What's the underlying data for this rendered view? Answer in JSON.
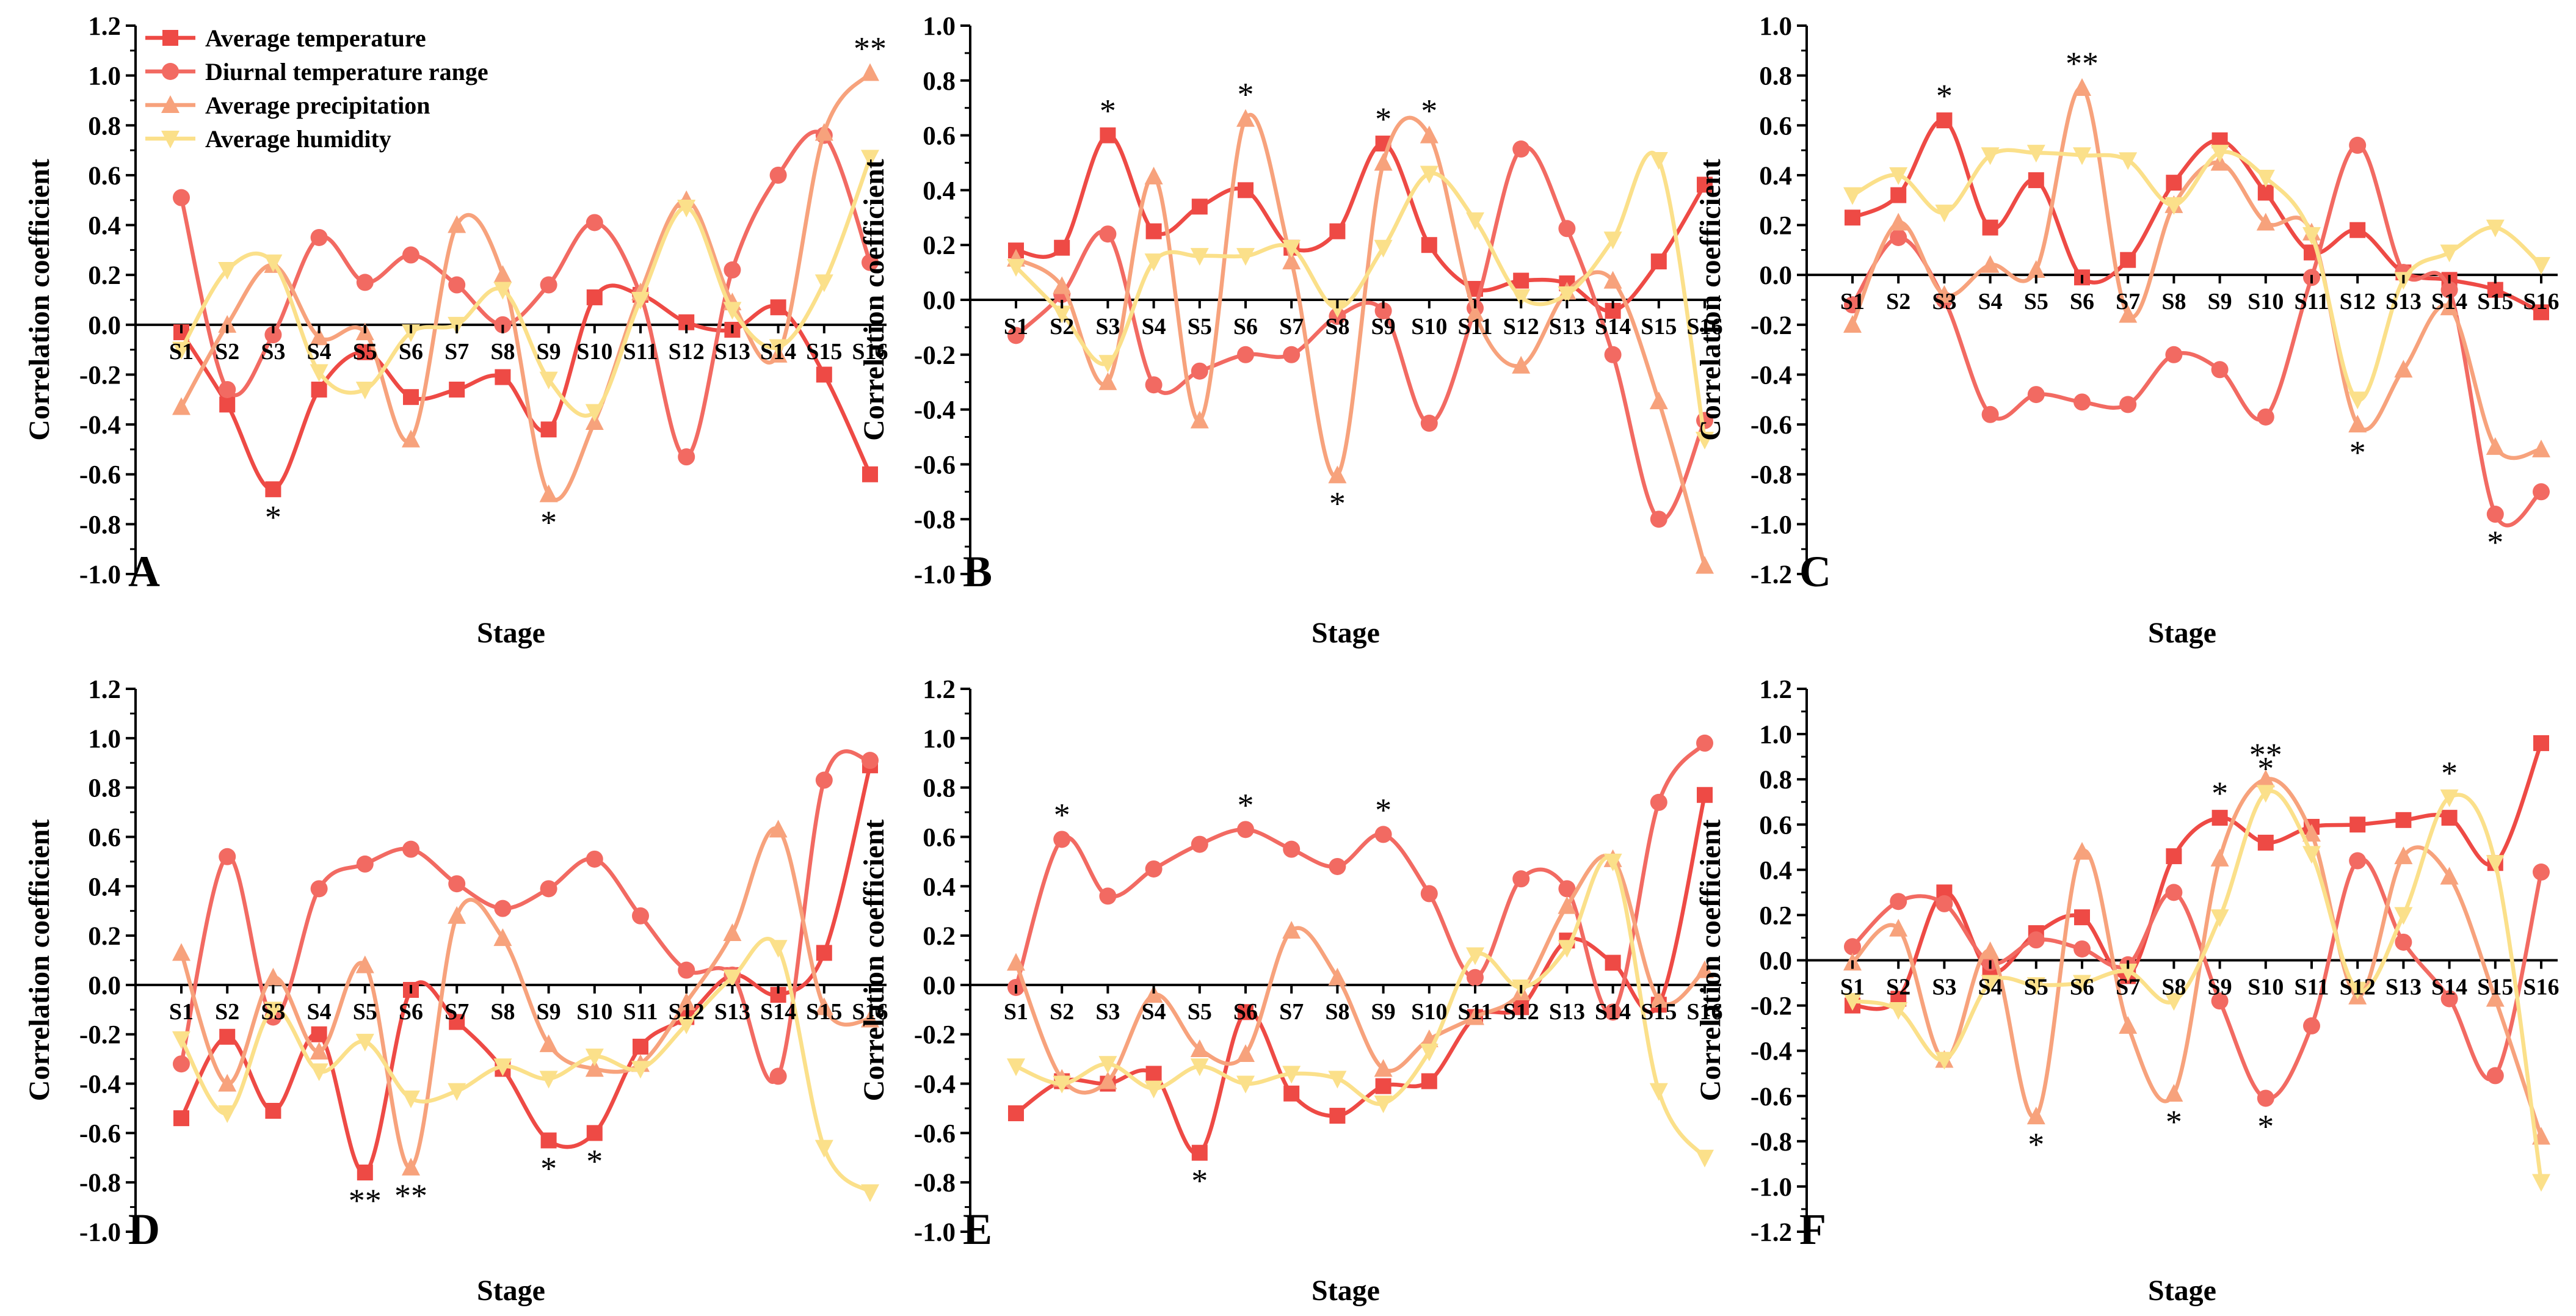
{
  "figure": {
    "legend": [
      {
        "name": "Average temperature",
        "marker": "square",
        "color": "#ee4a45"
      },
      {
        "name": "Diurnal temperature range",
        "marker": "circle",
        "color": "#f26a62"
      },
      {
        "name": "Average precipitation",
        "marker": "triangle",
        "color": "#f7a27c"
      },
      {
        "name": "Average humidity",
        "marker": "down-triangle",
        "color": "#fbe08a"
      }
    ]
  },
  "chart_data": [
    {
      "type": "line",
      "panel_label": "A",
      "xlabel": "Stage",
      "ylabel": "Correlation coefficient",
      "ylim": [
        -1.0,
        1.2
      ],
      "yticks": [
        "-1.0",
        "-0.8",
        "-0.6",
        "-0.4",
        "-0.2",
        "0.0",
        "0.2",
        "0.4",
        "0.6",
        "0.8",
        "1.0",
        "1.2"
      ],
      "categories": [
        "S1",
        "S2",
        "S3",
        "S4",
        "S5",
        "S6",
        "S7",
        "S8",
        "S9",
        "S10",
        "S11",
        "S12",
        "S13",
        "S14",
        "S15",
        "S16"
      ],
      "series": [
        {
          "name": "Average temperature",
          "values": [
            -0.03,
            -0.32,
            -0.66,
            -0.26,
            -0.11,
            -0.29,
            -0.26,
            -0.21,
            -0.42,
            0.11,
            0.12,
            0.01,
            -0.02,
            0.07,
            -0.2,
            -0.6
          ]
        },
        {
          "name": "Diurnal temperature range",
          "values": [
            0.51,
            -0.26,
            -0.04,
            0.35,
            0.17,
            0.28,
            0.16,
            0.0,
            0.16,
            0.41,
            0.12,
            -0.53,
            0.22,
            0.6,
            0.76,
            0.25
          ]
        },
        {
          "name": "Average precipitation",
          "values": [
            -0.33,
            0.0,
            0.24,
            -0.05,
            -0.03,
            -0.46,
            0.4,
            0.2,
            -0.68,
            -0.39,
            0.13,
            0.5,
            0.09,
            -0.12,
            0.77,
            1.01
          ]
        },
        {
          "name": "Average humidity",
          "values": [
            -0.1,
            0.22,
            0.25,
            -0.19,
            -0.26,
            -0.03,
            0.0,
            0.14,
            -0.22,
            -0.35,
            0.1,
            0.47,
            0.06,
            -0.09,
            0.17,
            0.67
          ]
        }
      ],
      "annotations": [
        {
          "text": "*",
          "index": 2,
          "value": -0.66,
          "pos": "below"
        },
        {
          "text": "*",
          "index": 8,
          "value": -0.68,
          "pos": "below"
        },
        {
          "text": "**",
          "index": 15,
          "value": 1.01,
          "pos": "above"
        }
      ]
    },
    {
      "type": "line",
      "panel_label": "B",
      "xlabel": "Stage",
      "ylabel": "Correlation coefficient",
      "ylim": [
        -1.0,
        1.0
      ],
      "yticks": [
        "-1.0",
        "-0.8",
        "-0.6",
        "-0.4",
        "-0.2",
        "0.0",
        "0.2",
        "0.4",
        "0.6",
        "0.8",
        "1.0"
      ],
      "categories": [
        "S1",
        "S2",
        "S3",
        "S4",
        "S5",
        "S6",
        "S7",
        "S8",
        "S9",
        "S10",
        "S11",
        "S12",
        "S13",
        "S14",
        "S15",
        "S16"
      ],
      "series": [
        {
          "name": "Average temperature",
          "values": [
            0.18,
            0.19,
            0.6,
            0.25,
            0.34,
            0.4,
            0.19,
            0.25,
            0.57,
            0.2,
            0.04,
            0.07,
            0.06,
            -0.04,
            0.14,
            0.42
          ]
        },
        {
          "name": "Diurnal temperature range",
          "values": [
            -0.13,
            0.02,
            0.24,
            -0.31,
            -0.26,
            -0.2,
            -0.2,
            -0.06,
            -0.04,
            -0.45,
            -0.03,
            0.55,
            0.26,
            -0.2,
            -0.8,
            -0.44
          ]
        },
        {
          "name": "Average precipitation",
          "values": [
            0.15,
            0.05,
            -0.3,
            0.45,
            -0.44,
            0.66,
            0.14,
            -0.64,
            0.5,
            0.6,
            -0.05,
            -0.24,
            0.03,
            0.07,
            -0.37,
            -0.97
          ]
        },
        {
          "name": "Average humidity",
          "values": [
            0.12,
            -0.05,
            -0.23,
            0.14,
            0.16,
            0.16,
            0.19,
            -0.03,
            0.19,
            0.46,
            0.29,
            0.01,
            0.02,
            0.22,
            0.51,
            -0.51
          ]
        }
      ],
      "annotations": [
        {
          "text": "*",
          "index": 2,
          "value": 0.6,
          "pos": "above"
        },
        {
          "text": "*",
          "index": 5,
          "value": 0.66,
          "pos": "above"
        },
        {
          "text": "*",
          "index": 7,
          "value": -0.64,
          "pos": "below"
        },
        {
          "text": "*",
          "index": 8,
          "value": 0.57,
          "pos": "above"
        },
        {
          "text": "*",
          "index": 9,
          "value": 0.6,
          "pos": "above"
        }
      ]
    },
    {
      "type": "line",
      "panel_label": "C",
      "xlabel": "Stage",
      "ylabel": "Correlation coefficient",
      "ylim": [
        -1.2,
        1.0
      ],
      "yticks": [
        "-1.2",
        "-1.0",
        "-0.8",
        "-0.6",
        "-0.4",
        "-0.2",
        "0.0",
        "0.2",
        "0.4",
        "0.6",
        "0.8",
        "1.0"
      ],
      "categories": [
        "S1",
        "S2",
        "S3",
        "S4",
        "S5",
        "S6",
        "S7",
        "S8",
        "S9",
        "S10",
        "S11",
        "S12",
        "S13",
        "S14",
        "S15",
        "S16"
      ],
      "series": [
        {
          "name": "Average temperature",
          "values": [
            0.23,
            0.32,
            0.62,
            0.19,
            0.38,
            -0.01,
            0.06,
            0.37,
            0.54,
            0.33,
            0.09,
            0.18,
            0.01,
            -0.02,
            -0.06,
            -0.15
          ]
        },
        {
          "name": "Diurnal temperature range",
          "values": [
            -0.12,
            0.15,
            -0.1,
            -0.56,
            -0.48,
            -0.51,
            -0.52,
            -0.32,
            -0.38,
            -0.57,
            -0.01,
            0.52,
            0.01,
            -0.06,
            -0.96,
            -0.87
          ]
        },
        {
          "name": "Average precipitation",
          "values": [
            -0.2,
            0.21,
            -0.08,
            0.04,
            0.02,
            0.75,
            -0.16,
            0.28,
            0.45,
            0.21,
            0.17,
            -0.6,
            -0.38,
            -0.13,
            -0.69,
            -0.7
          ]
        },
        {
          "name": "Average humidity",
          "values": [
            0.32,
            0.4,
            0.25,
            0.48,
            0.49,
            0.48,
            0.46,
            0.28,
            0.49,
            0.39,
            0.16,
            -0.5,
            -0.02,
            0.09,
            0.19,
            0.04
          ]
        }
      ],
      "annotations": [
        {
          "text": "*",
          "index": 2,
          "value": 0.62,
          "pos": "above"
        },
        {
          "text": "**",
          "index": 5,
          "value": 0.75,
          "pos": "above"
        },
        {
          "text": "*",
          "index": 11,
          "value": -0.6,
          "pos": "below"
        },
        {
          "text": "*",
          "index": 14,
          "value": -0.96,
          "pos": "below"
        }
      ]
    },
    {
      "type": "line",
      "panel_label": "D",
      "xlabel": "Stage",
      "ylabel": "Correlation coefficient",
      "ylim": [
        -1.0,
        1.2
      ],
      "yticks": [
        "-1.0",
        "-0.8",
        "-0.6",
        "-0.4",
        "-0.2",
        "0.0",
        "0.2",
        "0.4",
        "0.6",
        "0.8",
        "1.0",
        "1.2"
      ],
      "categories": [
        "S1",
        "S2",
        "S3",
        "S4",
        "S5",
        "S6",
        "S7",
        "S8",
        "S9",
        "S10",
        "S11",
        "S12",
        "S13",
        "S14",
        "S15",
        "S16"
      ],
      "series": [
        {
          "name": "Average temperature",
          "values": [
            -0.54,
            -0.21,
            -0.51,
            -0.2,
            -0.76,
            -0.02,
            -0.15,
            -0.34,
            -0.63,
            -0.6,
            -0.25,
            -0.13,
            0.04,
            -0.04,
            0.13,
            0.89
          ]
        },
        {
          "name": "Diurnal temperature range",
          "values": [
            -0.32,
            0.52,
            -0.13,
            0.39,
            0.49,
            0.55,
            0.41,
            0.31,
            0.39,
            0.51,
            0.28,
            0.06,
            0.04,
            -0.37,
            0.83,
            0.91
          ]
        },
        {
          "name": "Average precipitation",
          "values": [
            0.13,
            -0.4,
            0.03,
            -0.27,
            0.08,
            -0.74,
            0.28,
            0.19,
            -0.24,
            -0.34,
            -0.32,
            -0.07,
            0.21,
            0.63,
            -0.09,
            -0.14
          ]
        },
        {
          "name": "Average humidity",
          "values": [
            -0.22,
            -0.52,
            -0.1,
            -0.35,
            -0.23,
            -0.46,
            -0.43,
            -0.33,
            -0.38,
            -0.29,
            -0.34,
            -0.16,
            0.03,
            0.15,
            -0.66,
            -0.84
          ]
        }
      ],
      "annotations": [
        {
          "text": "**",
          "index": 4,
          "value": -0.76,
          "pos": "below"
        },
        {
          "text": "**",
          "index": 5,
          "value": -0.74,
          "pos": "below"
        },
        {
          "text": "*",
          "index": 8,
          "value": -0.63,
          "pos": "below"
        },
        {
          "text": "*",
          "index": 9,
          "value": -0.6,
          "pos": "below"
        }
      ]
    },
    {
      "type": "line",
      "panel_label": "E",
      "xlabel": "Stage",
      "ylabel": "Correlation coefficient",
      "ylim": [
        -1.0,
        1.2
      ],
      "yticks": [
        "-1.0",
        "-0.8",
        "-0.6",
        "-0.4",
        "-0.2",
        "0.0",
        "0.2",
        "0.4",
        "0.6",
        "0.8",
        "1.0",
        "1.2"
      ],
      "categories": [
        "S1",
        "S2",
        "S3",
        "S4",
        "S5",
        "S6",
        "S7",
        "S8",
        "S9",
        "S10",
        "S11",
        "S12",
        "S13",
        "S14",
        "S15",
        "S16"
      ],
      "series": [
        {
          "name": "Average temperature",
          "values": [
            -0.52,
            -0.39,
            -0.4,
            -0.36,
            -0.68,
            -0.11,
            -0.44,
            -0.53,
            -0.41,
            -0.39,
            -0.13,
            -0.09,
            0.18,
            0.09,
            -0.08,
            0.77
          ]
        },
        {
          "name": "Diurnal temperature range",
          "values": [
            -0.01,
            0.59,
            0.36,
            0.47,
            0.57,
            0.63,
            0.55,
            0.48,
            0.61,
            0.37,
            0.03,
            0.43,
            0.39,
            -0.11,
            0.74,
            0.98
          ]
        },
        {
          "name": "Average precipitation",
          "values": [
            0.09,
            -0.38,
            -0.39,
            -0.04,
            -0.26,
            -0.28,
            0.22,
            0.03,
            -0.34,
            -0.22,
            -0.13,
            -0.03,
            0.32,
            0.51,
            -0.06,
            0.06
          ]
        },
        {
          "name": "Average humidity",
          "values": [
            -0.33,
            -0.4,
            -0.32,
            -0.42,
            -0.33,
            -0.4,
            -0.36,
            -0.38,
            -0.48,
            -0.27,
            0.12,
            -0.01,
            0.15,
            0.5,
            -0.43,
            -0.7
          ]
        }
      ],
      "annotations": [
        {
          "text": "*",
          "index": 1,
          "value": 0.59,
          "pos": "above"
        },
        {
          "text": "*",
          "index": 4,
          "value": -0.68,
          "pos": "below"
        },
        {
          "text": "*",
          "index": 5,
          "value": 0.63,
          "pos": "above"
        },
        {
          "text": "*",
          "index": 8,
          "value": 0.61,
          "pos": "above"
        }
      ]
    },
    {
      "type": "line",
      "panel_label": "F",
      "xlabel": "Stage",
      "ylabel": "Correlation coefficient",
      "ylim": [
        -1.2,
        1.2
      ],
      "yticks": [
        "-1.2",
        "-1.0",
        "-0.8",
        "-0.6",
        "-0.4",
        "-0.2",
        "0.0",
        "0.2",
        "0.4",
        "0.6",
        "0.8",
        "1.0",
        "1.2"
      ],
      "categories": [
        "S1",
        "S2",
        "S3",
        "S4",
        "S5",
        "S6",
        "S7",
        "S8",
        "S9",
        "S10",
        "S11",
        "S12",
        "S13",
        "S14",
        "S15",
        "S16"
      ],
      "series": [
        {
          "name": "Average temperature",
          "values": [
            -0.2,
            -0.17,
            0.3,
            -0.05,
            0.12,
            0.19,
            -0.07,
            0.46,
            0.63,
            0.52,
            0.59,
            0.6,
            0.62,
            0.63,
            0.43,
            0.96
          ]
        },
        {
          "name": "Diurnal temperature range",
          "values": [
            0.06,
            0.26,
            0.25,
            -0.01,
            0.09,
            0.05,
            -0.02,
            0.3,
            -0.18,
            -0.61,
            -0.29,
            0.44,
            0.08,
            -0.17,
            -0.51,
            0.39
          ]
        },
        {
          "name": "Average precipitation",
          "values": [
            -0.01,
            0.14,
            -0.44,
            0.04,
            -0.69,
            0.48,
            -0.29,
            -0.59,
            0.45,
            0.8,
            0.56,
            -0.16,
            0.46,
            0.37,
            -0.17,
            -0.78
          ]
        },
        {
          "name": "Average humidity",
          "values": [
            -0.18,
            -0.22,
            -0.44,
            -0.1,
            -0.11,
            -0.1,
            -0.05,
            -0.18,
            0.19,
            0.74,
            0.47,
            -0.13,
            0.2,
            0.72,
            0.43,
            -0.98
          ]
        }
      ],
      "annotations": [
        {
          "text": "*",
          "index": 4,
          "value": -0.69,
          "pos": "below"
        },
        {
          "text": "*",
          "index": 7,
          "value": -0.59,
          "pos": "below"
        },
        {
          "text": "*",
          "index": 8,
          "value": 0.63,
          "pos": "above"
        },
        {
          "text": "**",
          "index": 9,
          "value": 0.8,
          "pos": "above"
        },
        {
          "text": "*",
          "index": 9,
          "value": 0.74,
          "pos": "above"
        },
        {
          "text": "*",
          "index": 9,
          "value": -0.61,
          "pos": "below"
        },
        {
          "text": "*",
          "index": 13,
          "value": 0.72,
          "pos": "above"
        }
      ]
    }
  ]
}
